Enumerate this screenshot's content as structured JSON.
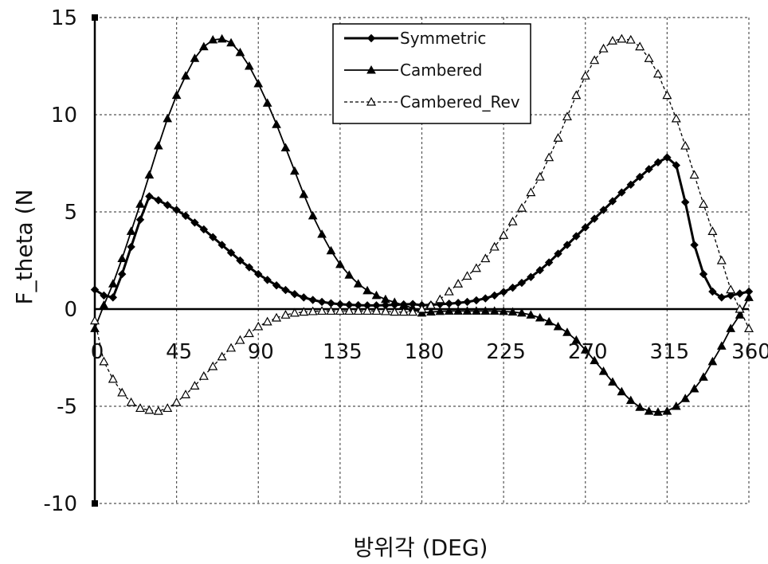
{
  "chart_data": {
    "type": "line",
    "title": "",
    "xlabel": "방위각 (DEG)",
    "ylabel": "F_theta (N",
    "xlim": [
      0,
      360
    ],
    "ylim": [
      -10,
      15
    ],
    "x_ticks": [
      "0",
      "45",
      "90",
      "135",
      "180",
      "225",
      "270",
      "315",
      "360"
    ],
    "y_ticks": [
      "15",
      "10",
      "5",
      "0",
      "-5",
      "-10"
    ],
    "grid": true,
    "legend_position": "top-right",
    "series": [
      {
        "name": "Symmetric",
        "marker": "filled-diamond",
        "line": "solid",
        "color": "#000000",
        "x": [
          0,
          5,
          10,
          15,
          20,
          25,
          30,
          35,
          40,
          45,
          50,
          55,
          60,
          65,
          70,
          75,
          80,
          85,
          90,
          95,
          100,
          105,
          110,
          115,
          120,
          125,
          130,
          135,
          140,
          145,
          150,
          155,
          160,
          165,
          170,
          175,
          180,
          185,
          190,
          195,
          200,
          205,
          210,
          215,
          220,
          225,
          230,
          235,
          240,
          245,
          250,
          255,
          260,
          265,
          270,
          275,
          280,
          285,
          290,
          295,
          300,
          305,
          310,
          315,
          320,
          325,
          330,
          335,
          340,
          345,
          350,
          355,
          360
        ],
        "values": [
          1.0,
          0.7,
          0.6,
          1.8,
          3.2,
          4.6,
          5.8,
          5.6,
          5.35,
          5.1,
          4.8,
          4.45,
          4.1,
          3.7,
          3.3,
          2.9,
          2.5,
          2.15,
          1.8,
          1.5,
          1.22,
          0.98,
          0.77,
          0.6,
          0.47,
          0.37,
          0.3,
          0.25,
          0.22,
          0.2,
          0.19,
          0.19,
          0.2,
          0.22,
          0.24,
          0.26,
          0.2,
          0.22,
          0.25,
          0.28,
          0.32,
          0.37,
          0.45,
          0.55,
          0.7,
          0.88,
          1.1,
          1.35,
          1.65,
          2.0,
          2.4,
          2.85,
          3.3,
          3.75,
          4.2,
          4.65,
          5.1,
          5.55,
          6.0,
          6.4,
          6.8,
          7.2,
          7.55,
          7.8,
          7.4,
          5.5,
          3.3,
          1.8,
          0.9,
          0.6,
          0.7,
          0.8,
          0.9
        ]
      },
      {
        "name": "Cambered",
        "marker": "filled-triangle",
        "line": "solid",
        "color": "#000000",
        "x": [
          0,
          5,
          10,
          15,
          20,
          25,
          30,
          35,
          40,
          45,
          50,
          55,
          60,
          65,
          70,
          75,
          80,
          85,
          90,
          95,
          100,
          105,
          110,
          115,
          120,
          125,
          130,
          135,
          140,
          145,
          150,
          155,
          160,
          165,
          170,
          175,
          180,
          185,
          190,
          195,
          200,
          205,
          210,
          215,
          220,
          225,
          230,
          235,
          240,
          245,
          250,
          255,
          260,
          265,
          270,
          275,
          280,
          285,
          290,
          295,
          300,
          305,
          310,
          315,
          320,
          325,
          330,
          335,
          340,
          345,
          350,
          355,
          360
        ],
        "values": [
          -1.0,
          0.2,
          1.3,
          2.6,
          4.0,
          5.4,
          6.9,
          8.4,
          9.8,
          11.0,
          12.0,
          12.9,
          13.5,
          13.85,
          13.9,
          13.7,
          13.2,
          12.5,
          11.6,
          10.6,
          9.5,
          8.3,
          7.1,
          5.9,
          4.8,
          3.85,
          3.0,
          2.3,
          1.75,
          1.3,
          0.95,
          0.7,
          0.5,
          0.35,
          0.2,
          0.05,
          -0.2,
          -0.15,
          -0.12,
          -0.1,
          -0.1,
          -0.1,
          -0.1,
          -0.1,
          -0.1,
          -0.12,
          -0.15,
          -0.2,
          -0.3,
          -0.45,
          -0.65,
          -0.9,
          -1.2,
          -1.6,
          -2.1,
          -2.65,
          -3.2,
          -3.75,
          -4.25,
          -4.7,
          -5.05,
          -5.25,
          -5.3,
          -5.25,
          -5.0,
          -4.6,
          -4.1,
          -3.5,
          -2.7,
          -1.9,
          -1.0,
          -0.3,
          0.6
        ]
      },
      {
        "name": "Cambered_Rev",
        "marker": "open-triangle",
        "line": "dashed",
        "color": "#000000",
        "x": [
          0,
          5,
          10,
          15,
          20,
          25,
          30,
          35,
          40,
          45,
          50,
          55,
          60,
          65,
          70,
          75,
          80,
          85,
          90,
          95,
          100,
          105,
          110,
          115,
          120,
          125,
          130,
          135,
          140,
          145,
          150,
          155,
          160,
          165,
          170,
          175,
          180,
          185,
          190,
          195,
          200,
          205,
          210,
          215,
          220,
          225,
          230,
          235,
          240,
          245,
          250,
          255,
          260,
          265,
          270,
          275,
          280,
          285,
          290,
          295,
          300,
          305,
          310,
          315,
          320,
          325,
          330,
          335,
          340,
          345,
          350,
          355,
          360
        ],
        "values": [
          -0.6,
          -2.7,
          -3.6,
          -4.3,
          -4.8,
          -5.1,
          -5.2,
          -5.25,
          -5.1,
          -4.8,
          -4.4,
          -3.95,
          -3.45,
          -2.95,
          -2.45,
          -2.0,
          -1.6,
          -1.25,
          -0.9,
          -0.65,
          -0.45,
          -0.3,
          -0.2,
          -0.15,
          -0.12,
          -0.1,
          -0.1,
          -0.1,
          -0.1,
          -0.1,
          -0.1,
          -0.1,
          -0.12,
          -0.15,
          -0.15,
          -0.15,
          0.0,
          0.2,
          0.5,
          0.9,
          1.3,
          1.7,
          2.1,
          2.6,
          3.2,
          3.8,
          4.5,
          5.2,
          6.0,
          6.8,
          7.8,
          8.8,
          9.9,
          11.0,
          12.0,
          12.8,
          13.4,
          13.8,
          13.9,
          13.85,
          13.5,
          12.9,
          12.1,
          11.0,
          9.8,
          8.4,
          6.9,
          5.4,
          4.0,
          2.5,
          1.0,
          0.0,
          -1.0
        ]
      }
    ]
  }
}
